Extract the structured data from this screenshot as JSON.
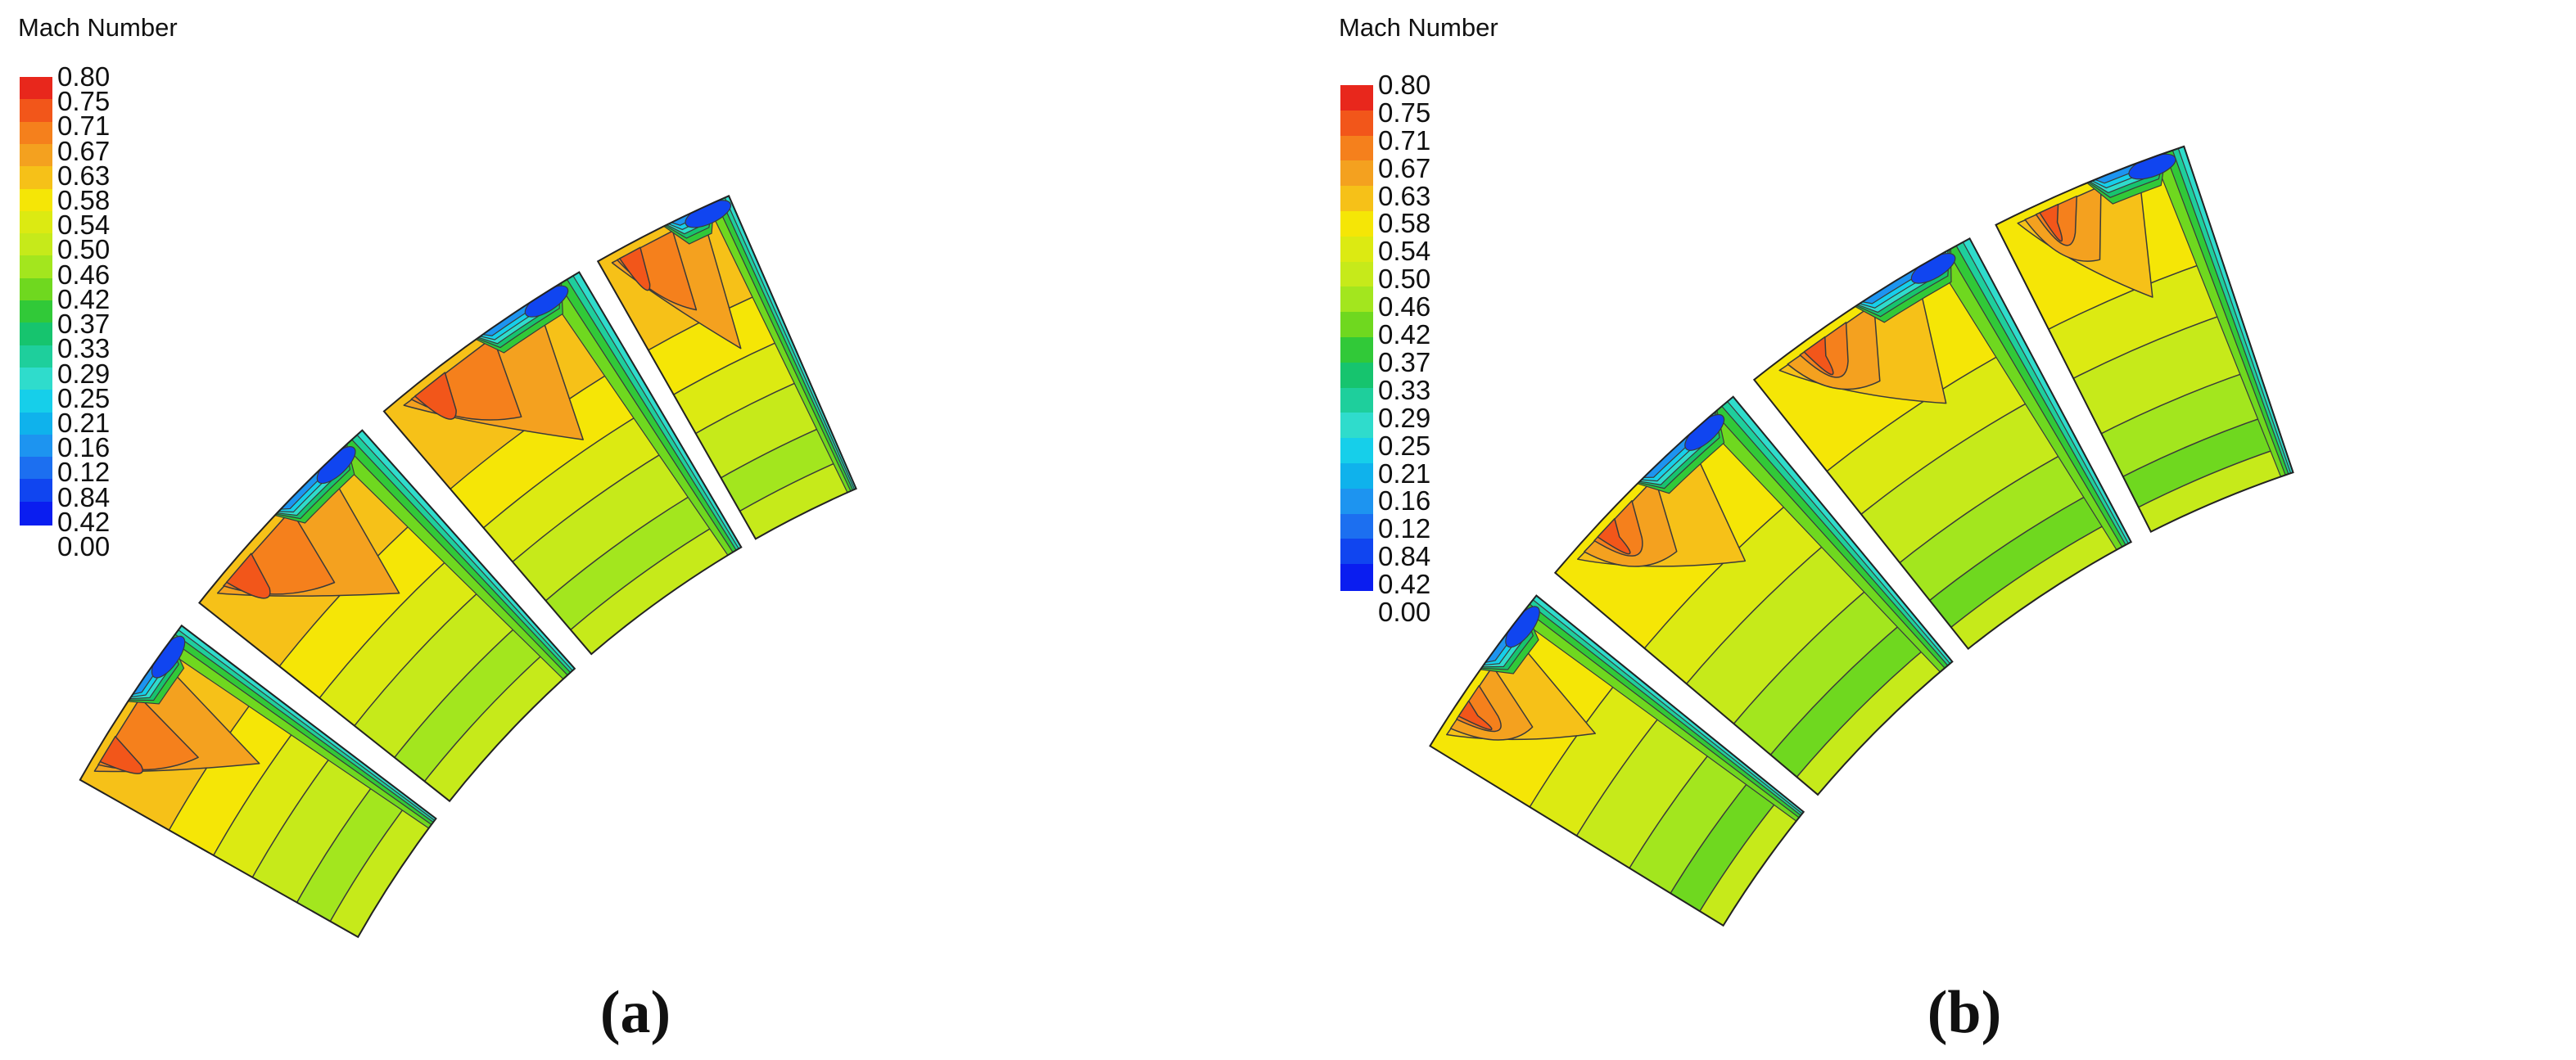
{
  "legend": {
    "title": "Mach Number",
    "ticks": [
      "0.80",
      "0.75",
      "0.71",
      "0.67",
      "0.63",
      "0.58",
      "0.54",
      "0.50",
      "0.46",
      "0.42",
      "0.37",
      "0.33",
      "0.29",
      "0.25",
      "0.21",
      "0.16",
      "0.12",
      "0.84",
      "0.42",
      "0.00"
    ],
    "colors": [
      "#e8271c",
      "#f2561a",
      "#f5801c",
      "#f4a11f",
      "#f6c118",
      "#f5e606",
      "#dcea12",
      "#c6ea1a",
      "#a3e61e",
      "#6fd81f",
      "#31c938",
      "#16c46e",
      "#1ecf9c",
      "#2fdccc",
      "#16cfea",
      "#0fb2ec",
      "#1d94f0",
      "#1c6ff0",
      "#1045f0",
      "#0a1df0"
    ]
  },
  "panels": [
    {
      "caption": "(a)"
    },
    {
      "caption": "(b)"
    }
  ]
}
